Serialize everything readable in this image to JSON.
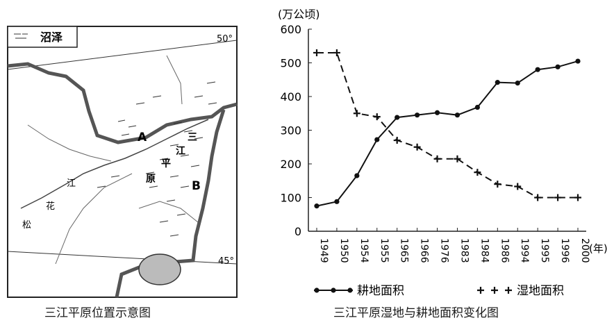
{
  "map": {
    "caption": "三江平原位置示意图",
    "legend_label": "沼泽",
    "lat_top": "50°",
    "lat_bottom": "45°",
    "label_a": "A",
    "label_b": "B",
    "river_chars": [
      "松",
      "花",
      "江"
    ],
    "plain_chars": [
      "三",
      "江",
      "平",
      "原"
    ]
  },
  "chart_caption": "三江平原湿地与耕地面积变化图",
  "chart_data": {
    "type": "line",
    "categories": [
      "1949",
      "1950",
      "1954",
      "1955",
      "1965",
      "1966",
      "1976",
      "1983",
      "1984",
      "1986",
      "1994",
      "1995",
      "1996",
      "2000"
    ],
    "series": [
      {
        "name": "耕地面积",
        "marker": "dot",
        "line": "solid",
        "values": [
          75,
          88,
          165,
          272,
          338,
          345,
          352,
          345,
          368,
          442,
          440,
          480,
          488,
          505
        ]
      },
      {
        "name": "湿地面积",
        "marker": "cross",
        "line": "dashed",
        "values": [
          530,
          530,
          350,
          340,
          270,
          250,
          215,
          215,
          175,
          140,
          133,
          100,
          100,
          100
        ]
      }
    ],
    "ylabel": "(万公顷)",
    "xunit": "(年)",
    "ylim": [
      0,
      600
    ],
    "yticks": [
      0,
      100,
      200,
      300,
      400,
      500,
      600
    ],
    "legend_position": "bottom",
    "grid": false
  }
}
